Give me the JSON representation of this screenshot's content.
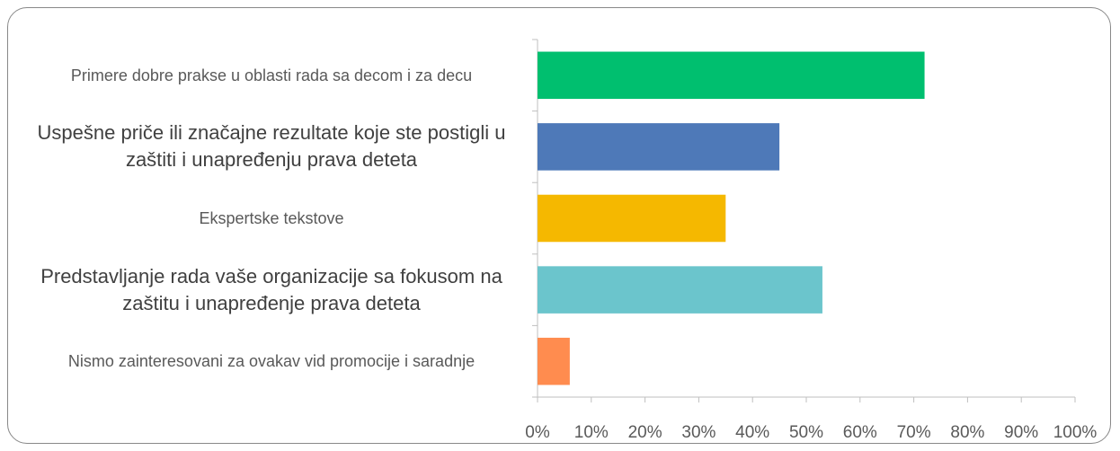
{
  "chart_data": {
    "type": "barh",
    "categories": [
      "Primere dobre prakse u oblasti rada sa decom i za decu",
      "Uspešne priče ili značajne rezultate koje ste postigli u zaštiti i unapređenju prava deteta",
      "Ekspertske tekstove",
      "Predstavljanje rada vaše organizacije sa fokusom na zaštitu i unapređenje prava deteta",
      "Nismo zainteresovani za ovakav vid promocije i saradnje"
    ],
    "values": [
      72,
      45,
      35,
      53,
      6
    ],
    "colors": [
      "#00bf6f",
      "#4e79b8",
      "#f5b800",
      "#6bc5cc",
      "#ff8c4f"
    ],
    "xlim": [
      0,
      100
    ],
    "xticks": [
      {
        "value": 0,
        "label": "0%"
      },
      {
        "value": 10,
        "label": "10%"
      },
      {
        "value": 20,
        "label": "20%"
      },
      {
        "value": 30,
        "label": "30%"
      },
      {
        "value": 40,
        "label": "40%"
      },
      {
        "value": 50,
        "label": "50%"
      },
      {
        "value": 60,
        "label": "60%"
      },
      {
        "value": 70,
        "label": "70%"
      },
      {
        "value": 80,
        "label": "80%"
      },
      {
        "value": 90,
        "label": "90%"
      },
      {
        "value": 100,
        "label": "100%"
      }
    ]
  }
}
